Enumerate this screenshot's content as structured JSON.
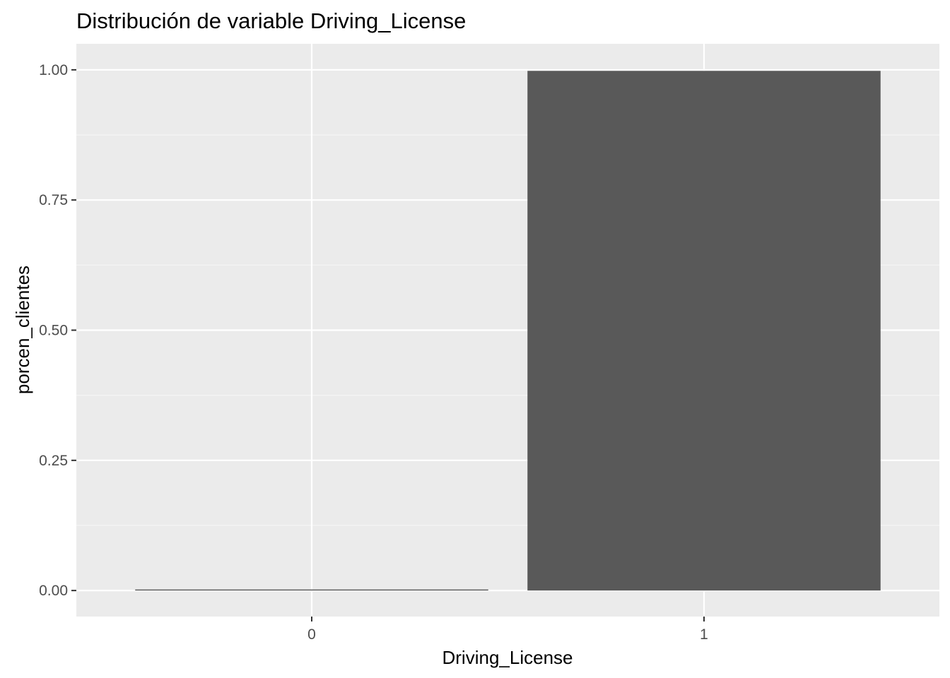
{
  "chart_data": {
    "type": "bar",
    "title": "Distribución de variable Driving_License",
    "xlabel": "Driving_License",
    "ylabel": "porcen_clientes",
    "categories": [
      "0",
      "1"
    ],
    "values": [
      0.002,
      0.998
    ],
    "ylim": [
      -0.05,
      1.05
    ],
    "yticks": [
      0.0,
      0.25,
      0.5,
      0.75,
      1.0
    ],
    "ytick_labels": [
      "0.00",
      "0.25",
      "0.50",
      "0.75",
      "1.00"
    ],
    "grid": true,
    "legend": "none",
    "colors": {
      "panel_background": "#ebebeb",
      "grid_major": "#ffffff",
      "grid_minor": "#f5f5f5",
      "bar_fill": "#595959",
      "tick_text": "#4d4d4d",
      "tick_mark": "#333333"
    }
  }
}
